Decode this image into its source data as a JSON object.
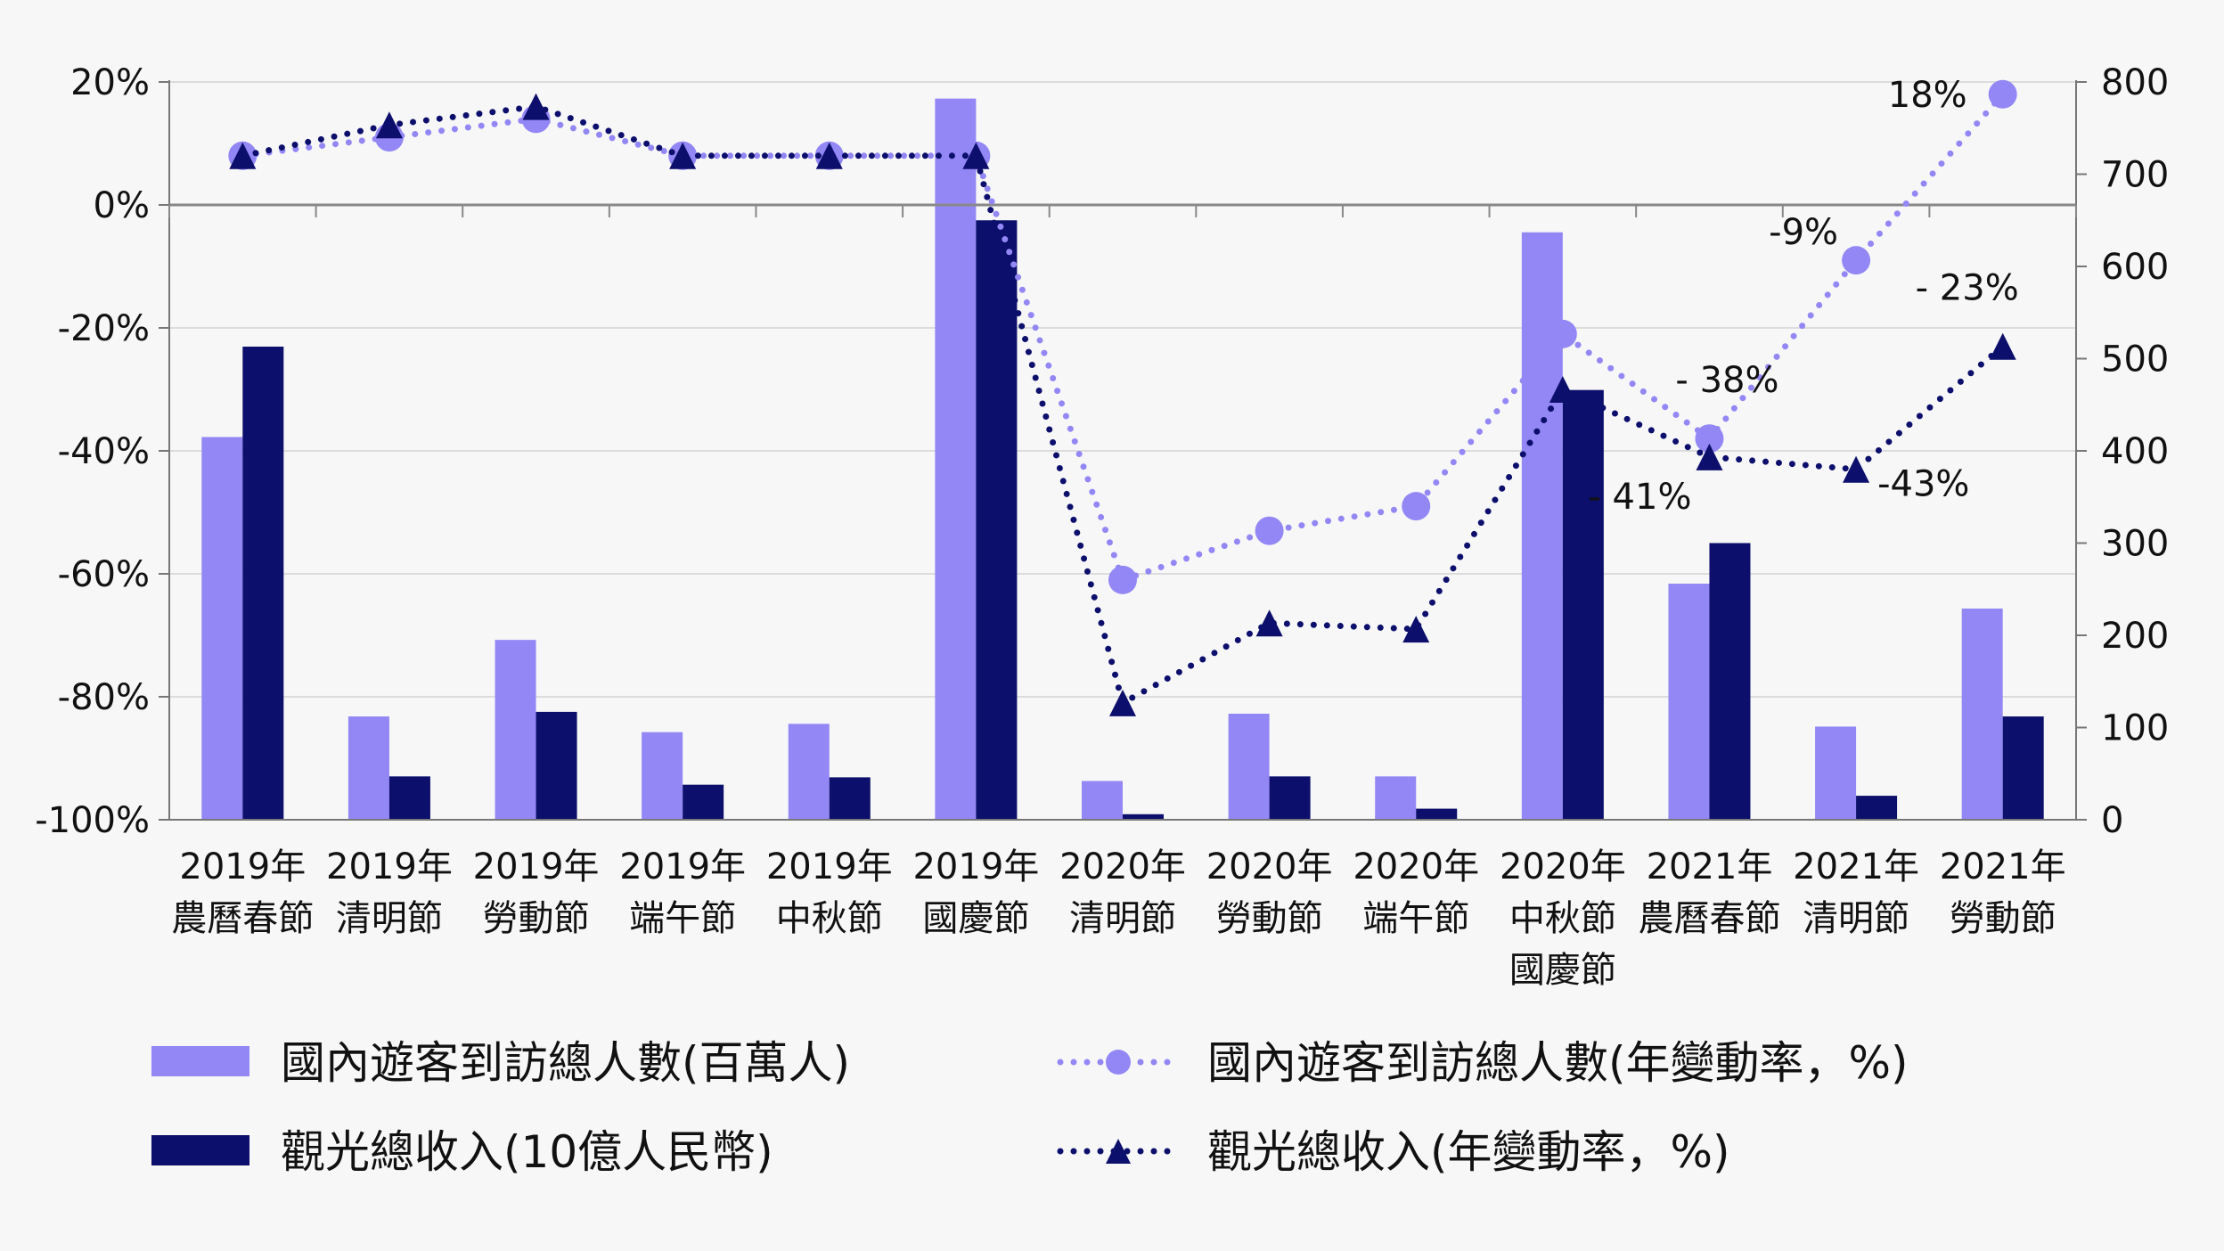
{
  "chart_data": {
    "type": "bar",
    "categories": [
      [
        "2019年",
        "農曆春節"
      ],
      [
        "2019年",
        "清明節"
      ],
      [
        "2019年",
        "勞動節"
      ],
      [
        "2019年",
        "端午節"
      ],
      [
        "2019年",
        "中秋節"
      ],
      [
        "2019年",
        "國慶節"
      ],
      [
        "2020年",
        "清明節"
      ],
      [
        "2020年",
        "勞動節"
      ],
      [
        "2020年",
        "端午節"
      ],
      [
        "2020年",
        "中秋節",
        "國慶節"
      ],
      [
        "2021年",
        "農曆春節"
      ],
      [
        "2021年",
        "清明節"
      ],
      [
        "2021年",
        "勞動節"
      ]
    ],
    "series": [
      {
        "name": "國內遊客到訪總人數(百萬人)",
        "type": "bar",
        "axis": "right",
        "color": "#9387f5",
        "values": [
          415,
          112,
          195,
          95,
          104,
          782,
          42,
          115,
          47,
          637,
          256,
          101,
          229
        ]
      },
      {
        "name": "觀光總收入(10億人民幣)",
        "type": "bar",
        "axis": "right",
        "color": "#0c0f6b",
        "values": [
          513,
          47,
          117,
          38,
          46,
          650,
          6,
          47,
          12,
          466,
          300,
          26,
          112
        ]
      },
      {
        "name": "國內遊客到訪總人數(年變動率，%)",
        "type": "line",
        "axis": "left",
        "color": "#9387f5",
        "marker": "circle",
        "values": [
          8,
          11,
          14,
          8,
          8,
          8,
          -61,
          -53,
          -49,
          -21,
          -38,
          -9,
          18
        ]
      },
      {
        "name": "觀光總收入(年變動率，%)",
        "type": "line",
        "axis": "left",
        "color": "#0c0f6b",
        "marker": "triangle",
        "values": [
          8,
          13,
          16,
          8,
          8,
          8,
          -81,
          -68,
          -69,
          -30,
          -41,
          -43,
          -23
        ]
      }
    ],
    "y_left": {
      "ticks": [
        "20%",
        "0%",
        "-20%",
        "-40%",
        "-60%",
        "-80%",
        "-100%"
      ],
      "range": [
        -100,
        20
      ]
    },
    "y_right": {
      "ticks": [
        "800",
        "700",
        "600",
        "500",
        "400",
        "300",
        "200",
        "100",
        "0"
      ],
      "range": [
        0,
        800
      ]
    },
    "annotations": [
      {
        "text": "18%",
        "series": 2,
        "index": 12
      },
      {
        "text": "-9%",
        "series": 2,
        "index": 11
      },
      {
        "text": "- 23%",
        "series": 3,
        "index": 12
      },
      {
        "text": "- 38%",
        "series": 2,
        "index": 10
      },
      {
        "text": "- 41%",
        "series": 3,
        "index": 10
      },
      {
        "text": "-43%",
        "series": 3,
        "index": 11
      }
    ],
    "legend": {
      "placement": "bottom",
      "items": [
        "國內遊客到訪總人數(百萬人)",
        "國內遊客到訪總人數(年變動率，%)",
        "觀光總收入(10億人民幣)",
        "觀光總收入(年變動率，%)"
      ]
    },
    "grid": true
  }
}
